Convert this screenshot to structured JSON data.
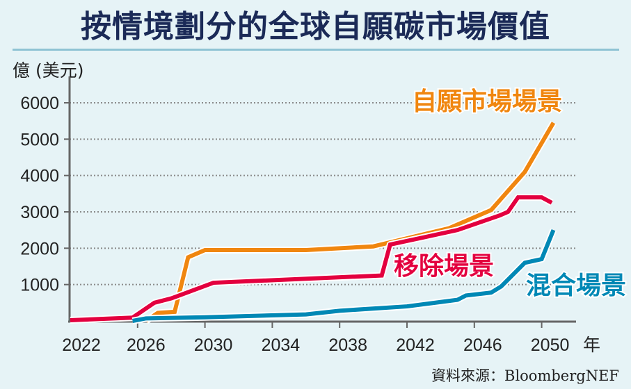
{
  "chart_data": {
    "type": "line",
    "title": "按情境劃分的全球自願碳市場價值",
    "ylabel": "億 (美元)",
    "xlabel_suffix": "年",
    "source": "資料來源：BloombergNEF",
    "xlim": [
      2022,
      2052
    ],
    "ylim": [
      0,
      6000
    ],
    "xticks": [
      "2022",
      "2026",
      "2030",
      "2034",
      "2038",
      "2042",
      "2046",
      "2050"
    ],
    "yticks": [
      "1000",
      "2000",
      "3000",
      "4000",
      "5000",
      "6000"
    ],
    "grid": "horizontal dotted",
    "series": [
      {
        "name": "自願市場場景",
        "color": "#f0860f",
        "x": [
          2026.5,
          2027.2,
          2028.2,
          2029,
          2030,
          2036,
          2040,
          2044.5,
          2047,
          2049,
          2050.7
        ],
        "y": [
          0,
          220,
          250,
          1750,
          1950,
          1950,
          2050,
          2550,
          3050,
          4100,
          5450
        ]
      },
      {
        "name": "移除場景",
        "color": "#e3003f",
        "x": [
          2022,
          2025.7,
          2027,
          2028,
          2030.5,
          2040.5,
          2041,
          2043,
          2045,
          2047.5,
          2048,
          2048.6,
          2050,
          2050.6
        ],
        "y": [
          20,
          90,
          500,
          620,
          1050,
          1250,
          2100,
          2300,
          2500,
          2900,
          3000,
          3400,
          3400,
          3250
        ]
      },
      {
        "name": "混合場景",
        "color": "#0088b5",
        "x": [
          2025.7,
          2026.5,
          2030,
          2036,
          2038,
          2042,
          2045,
          2045.5,
          2047,
          2047.6,
          2049,
          2050,
          2050.7
        ],
        "y": [
          0,
          70,
          100,
          180,
          280,
          400,
          580,
          700,
          780,
          950,
          1600,
          1700,
          2500
        ]
      }
    ]
  }
}
